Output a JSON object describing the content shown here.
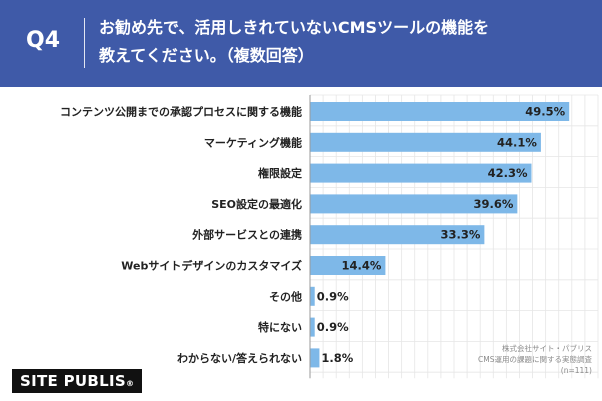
{
  "question": {
    "number": "Q4",
    "line1": "お勧め先で、活用しきれていないCMSツールの機能を",
    "line2": "教えてください。（複数回答）"
  },
  "chart_data": {
    "type": "bar",
    "orientation": "horizontal",
    "categories": [
      "コンテンツ公開までの承認プロセスに関する機能",
      "マーケティング機能",
      "権限設定",
      "SEO設定の最適化",
      "外部サービスとの連携",
      "Webサイトデザインのカスタマイズ",
      "その他",
      "特にない",
      "わからない/答えられない"
    ],
    "values": [
      49.5,
      44.1,
      42.3,
      39.6,
      33.3,
      14.4,
      0.9,
      0.9,
      1.8
    ],
    "value_labels": [
      "49.5%",
      "44.1%",
      "42.3%",
      "39.6%",
      "33.3%",
      "14.4%",
      "0.9%",
      "0.9%",
      "1.8%"
    ],
    "unit": "%",
    "xlim": [
      0,
      55
    ],
    "bar_color": "#7eb8e8",
    "grid": true
  },
  "footer": {
    "logo": "SITE PUBLIS",
    "logo_mark": "®",
    "source_line1": "株式会社サイト・パブリス",
    "source_line2": "CMS運用の課題に関する実態調査",
    "source_line3": "(n=111)"
  },
  "colors": {
    "header_bg": "#3f5aa8",
    "bar": "#7eb8e8",
    "grid": "#e6e6e6"
  }
}
